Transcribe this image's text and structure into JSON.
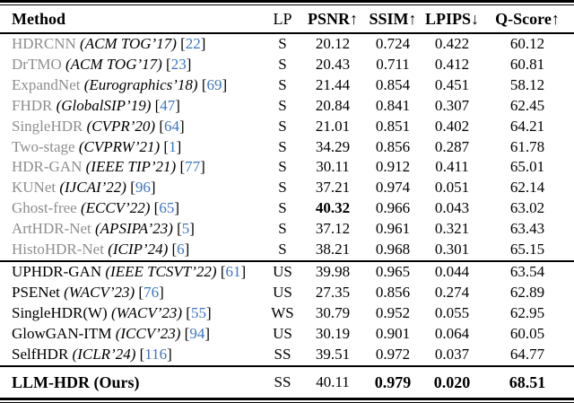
{
  "table": {
    "columns": [
      {
        "key": "method",
        "label": "Method"
      },
      {
        "key": "lp",
        "label": "LP"
      },
      {
        "key": "psnr",
        "label": "PSNR↑"
      },
      {
        "key": "ssim",
        "label": "SSIM↑"
      },
      {
        "key": "lpips",
        "label": "LPIPS↓"
      },
      {
        "key": "qscore",
        "label": "Q-Score↑"
      }
    ],
    "colors": {
      "muted_method_gray": "#8e8e8e",
      "citation_blue": "#3d76c0",
      "text_black": "#000000"
    },
    "groups": [
      {
        "name_style": "muted",
        "rows": [
          {
            "method": "HDRCNN",
            "venue": "(ACM TOG’17)",
            "cite": "[22]",
            "lp": "S",
            "psnr": "20.12",
            "ssim": "0.724",
            "lpips": "0.422",
            "qscore": "60.12",
            "bold": []
          },
          {
            "method": "DrTMO",
            "venue": "(ACM TOG’17)",
            "cite": "[23]",
            "lp": "S",
            "psnr": "20.43",
            "ssim": "0.711",
            "lpips": "0.412",
            "qscore": "60.81",
            "bold": []
          },
          {
            "method": "ExpandNet",
            "venue": "(Eurographics’18)",
            "cite": "[69]",
            "lp": "S",
            "psnr": "21.44",
            "ssim": "0.854",
            "lpips": "0.451",
            "qscore": "58.12",
            "bold": []
          },
          {
            "method": "FHDR",
            "venue": "(GlobalSIP’19)",
            "cite": "[47]",
            "lp": "S",
            "psnr": "20.84",
            "ssim": "0.841",
            "lpips": "0.307",
            "qscore": "62.45",
            "bold": []
          },
          {
            "method": "SingleHDR",
            "venue": "(CVPR’20)",
            "cite": "[64]",
            "lp": "S",
            "psnr": "21.01",
            "ssim": "0.851",
            "lpips": "0.402",
            "qscore": "64.21",
            "bold": []
          },
          {
            "method": "Two-stage",
            "venue": "(CVPRW’21)",
            "cite": "[1]",
            "lp": "S",
            "psnr": "34.29",
            "ssim": "0.856",
            "lpips": "0.287",
            "qscore": "61.78",
            "bold": []
          },
          {
            "method": "HDR-GAN",
            "venue": "(IEEE TIP’21)",
            "cite": "[77]",
            "lp": "S",
            "psnr": "30.11",
            "ssim": "0.912",
            "lpips": "0.411",
            "qscore": "65.01",
            "bold": []
          },
          {
            "method": "KUNet",
            "venue": "(IJCAI’22)",
            "cite": "[96]",
            "lp": "S",
            "psnr": "37.21",
            "ssim": "0.974",
            "lpips": "0.051",
            "qscore": "62.14",
            "bold": []
          },
          {
            "method": "Ghost-free",
            "venue": "(ECCV’22)",
            "cite": "[65]",
            "lp": "S",
            "psnr": "40.32",
            "ssim": "0.966",
            "lpips": "0.043",
            "qscore": "63.02",
            "bold": [
              "psnr"
            ]
          },
          {
            "method": "ArtHDR-Net",
            "venue": "(APSIPA’23)",
            "cite": "[5]",
            "lp": "S",
            "psnr": "37.12",
            "ssim": "0.961",
            "lpips": "0.321",
            "qscore": "63.43",
            "bold": []
          },
          {
            "method": "HistoHDR-Net",
            "venue": "(ICIP’24)",
            "cite": "[6]",
            "lp": "S",
            "psnr": "38.21",
            "ssim": "0.968",
            "lpips": "0.301",
            "qscore": "65.15",
            "bold": []
          }
        ]
      },
      {
        "name_style": "normal",
        "rows": [
          {
            "method": "UPHDR-GAN",
            "venue": "(IEEE TCSVT’22)",
            "cite": "[61]",
            "lp": "US",
            "psnr": "39.98",
            "ssim": "0.965",
            "lpips": "0.044",
            "qscore": "63.54",
            "bold": []
          },
          {
            "method": "PSENet",
            "venue": "(WACV’23)",
            "cite": "[76]",
            "lp": "US",
            "psnr": "27.35",
            "ssim": "0.856",
            "lpips": "0.274",
            "qscore": "62.89",
            "bold": []
          },
          {
            "method": "SingleHDR(W)",
            "venue": "(WACV’23)",
            "cite": "[55]",
            "lp": "WS",
            "psnr": "30.79",
            "ssim": "0.952",
            "lpips": "0.055",
            "qscore": "62.95",
            "bold": []
          },
          {
            "method": "GlowGAN-ITM",
            "venue": "(ICCV’23)",
            "cite": "[94]",
            "lp": "US",
            "psnr": "30.19",
            "ssim": "0.901",
            "lpips": "0.064",
            "qscore": "60.05",
            "bold": []
          },
          {
            "method": "SelfHDR",
            "venue": "(ICLR’24)",
            "cite": "[116]",
            "lp": "SS",
            "psnr": "39.51",
            "ssim": "0.972",
            "lpips": "0.037",
            "qscore": "64.77",
            "bold": []
          }
        ]
      },
      {
        "name_style": "ours",
        "rows": [
          {
            "method": "LLM-HDR (Ours)",
            "venue": "",
            "cite": "",
            "lp": "SS",
            "psnr": "40.11",
            "ssim": "0.979",
            "lpips": "0.020",
            "qscore": "68.51",
            "bold": [
              "ssim",
              "lpips",
              "qscore"
            ]
          }
        ]
      }
    ]
  }
}
